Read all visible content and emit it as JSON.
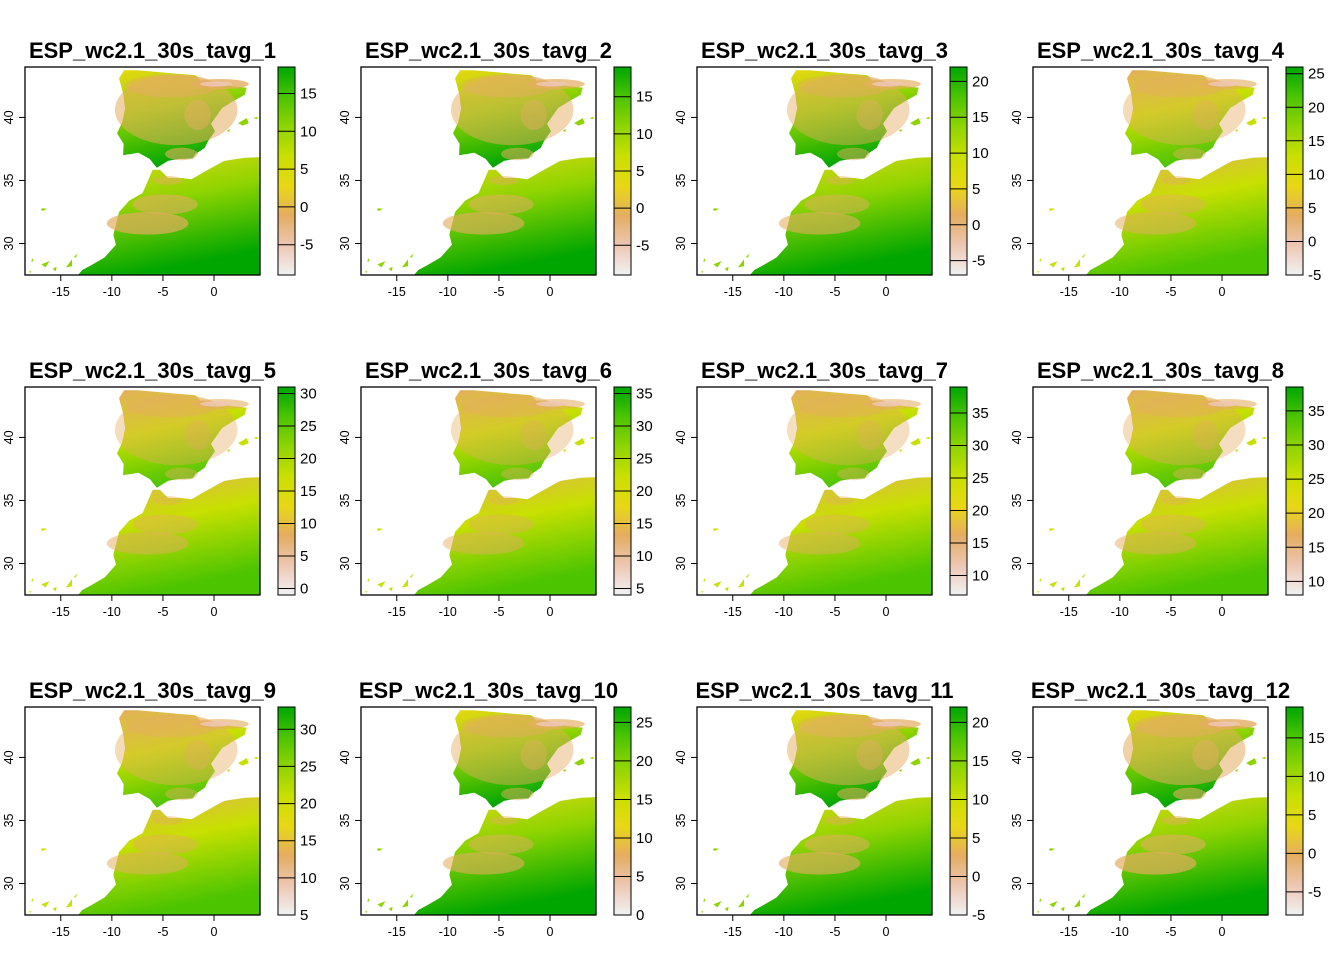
{
  "figure": {
    "panels": [
      {
        "title": "ESP_wc2.1_30s_tavg_1",
        "legend": {
          "min": -9,
          "max": 18.5,
          "ticks": [
            -5,
            0,
            5,
            10,
            15
          ]
        }
      },
      {
        "title": "ESP_wc2.1_30s_tavg_2",
        "legend": {
          "min": -9,
          "max": 19,
          "ticks": [
            -5,
            0,
            5,
            10,
            15
          ]
        }
      },
      {
        "title": "ESP_wc2.1_30s_tavg_3",
        "legend": {
          "min": -7,
          "max": 22,
          "ticks": [
            -5,
            0,
            5,
            10,
            15,
            20
          ]
        }
      },
      {
        "title": "ESP_wc2.1_30s_tavg_4",
        "legend": {
          "min": -5,
          "max": 26,
          "ticks": [
            -5,
            0,
            5,
            10,
            15,
            20,
            25
          ]
        }
      },
      {
        "title": "ESP_wc2.1_30s_tavg_5",
        "legend": {
          "min": -1,
          "max": 31,
          "ticks": [
            0,
            5,
            10,
            15,
            20,
            25,
            30
          ]
        }
      },
      {
        "title": "ESP_wc2.1_30s_tavg_6",
        "legend": {
          "min": 4,
          "max": 36,
          "ticks": [
            5,
            10,
            15,
            20,
            25,
            30,
            35
          ]
        }
      },
      {
        "title": "ESP_wc2.1_30s_tavg_7",
        "legend": {
          "min": 7,
          "max": 39,
          "ticks": [
            10,
            15,
            20,
            25,
            30,
            35
          ]
        }
      },
      {
        "title": "ESP_wc2.1_30s_tavg_8",
        "legend": {
          "min": 8,
          "max": 38.5,
          "ticks": [
            10,
            15,
            20,
            25,
            30,
            35
          ]
        }
      },
      {
        "title": "ESP_wc2.1_30s_tavg_9",
        "legend": {
          "min": 5,
          "max": 33,
          "ticks": [
            5,
            10,
            15,
            20,
            25,
            30
          ]
        }
      },
      {
        "title": "ESP_wc2.1_30s_tavg_10",
        "legend": {
          "min": 0,
          "max": 27,
          "ticks": [
            0,
            5,
            10,
            15,
            20,
            25
          ]
        }
      },
      {
        "title": "ESP_wc2.1_30s_tavg_11",
        "legend": {
          "min": -5,
          "max": 22,
          "ticks": [
            -5,
            0,
            5,
            10,
            15,
            20
          ]
        }
      },
      {
        "title": "ESP_wc2.1_30s_tavg_12",
        "legend": {
          "min": -8,
          "max": 19,
          "ticks": [
            -5,
            0,
            5,
            10,
            15
          ]
        }
      }
    ],
    "x_axis": {
      "min": -18.5,
      "max": 4.5,
      "ticks": [
        -15,
        -10,
        -5,
        0
      ]
    },
    "y_axis": {
      "min": 27.5,
      "max": 44,
      "ticks": [
        30,
        35,
        40
      ]
    },
    "palette": [
      "#f2f2f2",
      "#edc6b3",
      "#e5ad61",
      "#e8d813",
      "#c8e000",
      "#8fd400",
      "#4cc400",
      "#00a600"
    ]
  }
}
